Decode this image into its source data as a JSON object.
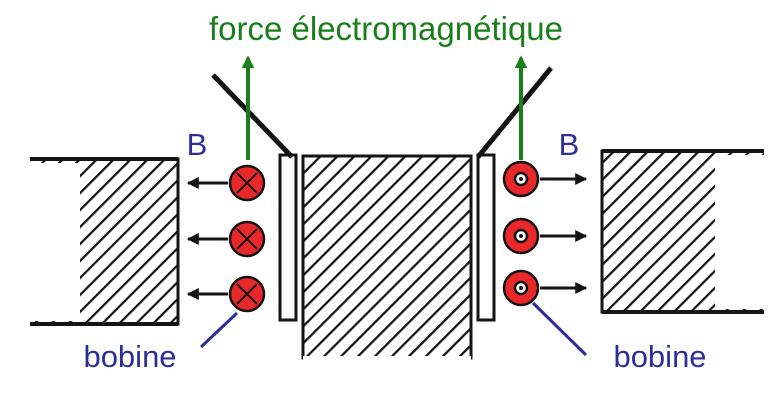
{
  "title": "force électromagnétique",
  "field_label_left": "B",
  "field_label_right": "B",
  "coil_label_left": "bobine",
  "coil_label_right": "bobine",
  "colors": {
    "force": "#1a7f1a",
    "labels": "#2e2e9a",
    "coil": "#e8282a",
    "ink": "#141414"
  },
  "icons": {
    "current_into_page": "cross-circle",
    "current_out_of_page": "dot-circle"
  }
}
